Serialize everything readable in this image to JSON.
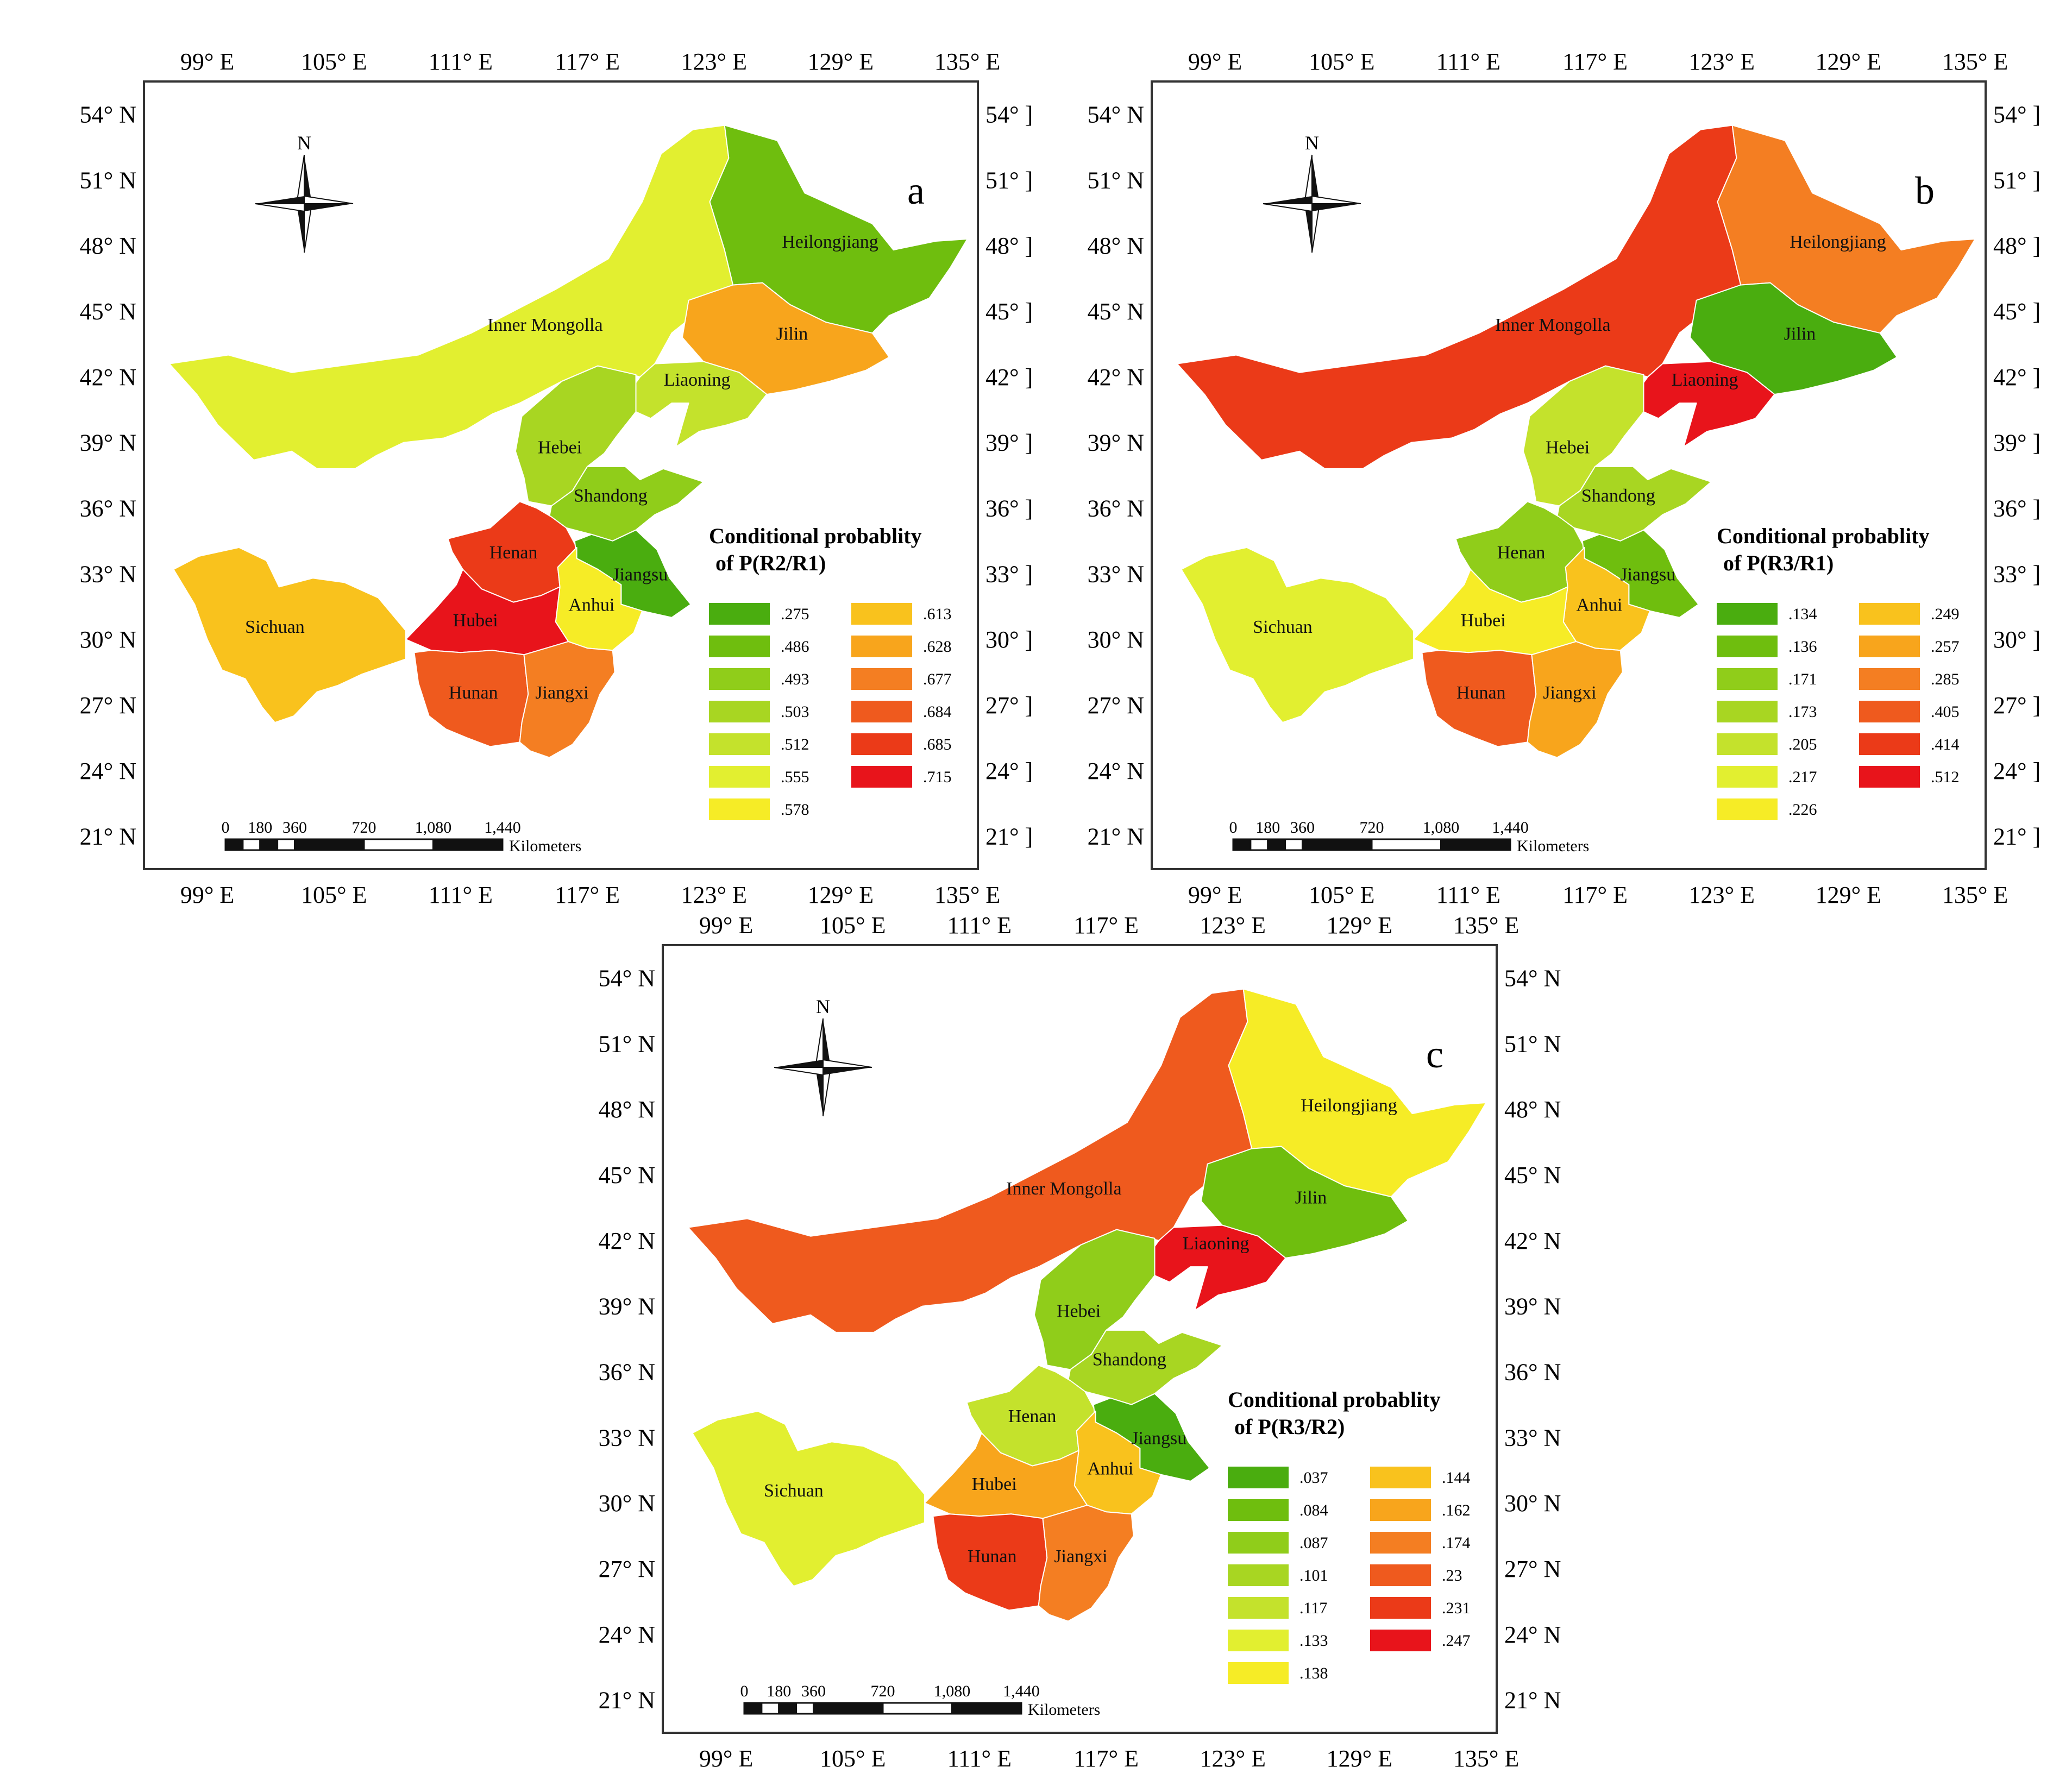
{
  "figure": {
    "panels": [
      {
        "id": "a",
        "panel_label": "a",
        "north_label": "N",
        "legend_title_line1": "Conditional probablity",
        "legend_title_line2": "of  P(R2/R1)",
        "scale_bar": {
          "ticks": [
            "0",
            "180",
            "360",
            "720",
            "1,080",
            "1,440"
          ],
          "unit": "Kilometers"
        },
        "axes": {
          "lon_labels_top": [
            "99° E",
            "105° E",
            "111° E",
            "117° E",
            "123° E",
            "129° E",
            "135° E"
          ],
          "lon_labels_bottom": [
            "99° E",
            "105° E",
            "111° E",
            "117° E",
            "123° E",
            "129° E",
            "135° E"
          ],
          "lat_labels_left": [
            "54° N",
            "51° N",
            "48° N",
            "45° N",
            "42° N",
            "39° N",
            "36° N",
            "33° N",
            "30° N",
            "27° N",
            "24° N",
            "21° N"
          ],
          "lat_labels_right": [
            "54° ]",
            "51° ]",
            "48° ]",
            "45° ]",
            "42° ]",
            "39° ]",
            "36° ]",
            "33° ]",
            "30° ]",
            "27° ]",
            "24° ]",
            "21° ]"
          ]
        },
        "legend_classes": [
          {
            "label": ".275",
            "color": "#4aad0f"
          },
          {
            "label": ".486",
            "color": "#6fbe0e"
          },
          {
            "label": ".493",
            "color": "#90cd1a"
          },
          {
            "label": ".503",
            "color": "#a8d622"
          },
          {
            "label": ".512",
            "color": "#c4e22c"
          },
          {
            "label": ".555",
            "color": "#e2ef30"
          },
          {
            "label": ".578",
            "color": "#f6ec26"
          },
          {
            "label": ".613",
            "color": "#f9c21d"
          },
          {
            "label": ".628",
            "color": "#f8a51c"
          },
          {
            "label": ".677",
            "color": "#f47e22"
          },
          {
            "label": ".684",
            "color": "#ef5a1e"
          },
          {
            "label": ".685",
            "color": "#eb3a18"
          },
          {
            "label": ".715",
            "color": "#e8141b"
          }
        ],
        "provinces": [
          {
            "name": "Inner Mongolla",
            "value": ".555",
            "color": "#e2ef30"
          },
          {
            "name": "Heilongjiang",
            "value": ".486",
            "color": "#6fbe0e"
          },
          {
            "name": "Jilin",
            "value": ".628",
            "color": "#f8a51c"
          },
          {
            "name": "Liaoning",
            "value": ".512",
            "color": "#c4e22c"
          },
          {
            "name": "Hebei",
            "value": ".503",
            "color": "#a8d622"
          },
          {
            "name": "Shandong",
            "value": ".493",
            "color": "#90cd1a"
          },
          {
            "name": "Henan",
            "value": ".685",
            "color": "#eb3a18"
          },
          {
            "name": "Jiangsu",
            "value": ".275",
            "color": "#4aad0f"
          },
          {
            "name": "Anhui",
            "value": ".578",
            "color": "#f6ec26"
          },
          {
            "name": "Hubei",
            "value": ".715",
            "color": "#e8141b"
          },
          {
            "name": "Sichuan",
            "value": ".613",
            "color": "#f9c21d"
          },
          {
            "name": "Hunan",
            "value": ".684",
            "color": "#ef5a1e"
          },
          {
            "name": "Jiangxi",
            "value": ".677",
            "color": "#f47e22"
          }
        ]
      },
      {
        "id": "b",
        "panel_label": "b",
        "north_label": "N",
        "legend_title_line1": "Conditional probablity",
        "legend_title_line2": "of  P(R3/R1)",
        "scale_bar": {
          "ticks": [
            "0",
            "180",
            "360",
            "720",
            "1,080",
            "1,440"
          ],
          "unit": "Kilometers"
        },
        "axes": {
          "lon_labels_top": [
            "99° E",
            "105° E",
            "111° E",
            "117° E",
            "123° E",
            "129° E",
            "135° E"
          ],
          "lon_labels_bottom": [
            "99° E",
            "105° E",
            "111° E",
            "117° E",
            "123° E",
            "129° E",
            "135° E"
          ],
          "lat_labels_left": [
            "54° N",
            "51° N",
            "48° N",
            "45° N",
            "42° N",
            "39° N",
            "36° N",
            "33° N",
            "30° N",
            "27° N",
            "24° N",
            "21° N"
          ],
          "lat_labels_right": [
            "54° ]",
            "51° ]",
            "48° ]",
            "45° ]",
            "42° ]",
            "39° ]",
            "36° ]",
            "33° ]",
            "30° ]",
            "27° ]",
            "24° ]",
            "21° ]"
          ]
        },
        "legend_classes": [
          {
            "label": ".134",
            "color": "#4aad0f"
          },
          {
            "label": ".136",
            "color": "#6fbe0e"
          },
          {
            "label": ".171",
            "color": "#90cd1a"
          },
          {
            "label": ".173",
            "color": "#a8d622"
          },
          {
            "label": ".205",
            "color": "#c4e22c"
          },
          {
            "label": ".217",
            "color": "#e2ef30"
          },
          {
            "label": ".226",
            "color": "#f6ec26"
          },
          {
            "label": ".249",
            "color": "#f9c21d"
          },
          {
            "label": ".257",
            "color": "#f8a51c"
          },
          {
            "label": ".285",
            "color": "#f47e22"
          },
          {
            "label": ".405",
            "color": "#ef5a1e"
          },
          {
            "label": ".414",
            "color": "#eb3a18"
          },
          {
            "label": ".512",
            "color": "#e8141b"
          }
        ],
        "provinces": [
          {
            "name": "Inner Mongolla",
            "value": ".414",
            "color": "#eb3a18"
          },
          {
            "name": "Heilongjiang",
            "value": ".285",
            "color": "#f47e22"
          },
          {
            "name": "Jilin",
            "value": ".134",
            "color": "#4aad0f"
          },
          {
            "name": "Liaoning",
            "value": ".512",
            "color": "#e8141b"
          },
          {
            "name": "Hebei",
            "value": ".205",
            "color": "#c4e22c"
          },
          {
            "name": "Shandong",
            "value": ".173",
            "color": "#a8d622"
          },
          {
            "name": "Henan",
            "value": ".171",
            "color": "#90cd1a"
          },
          {
            "name": "Jiangsu",
            "value": ".136",
            "color": "#6fbe0e"
          },
          {
            "name": "Anhui",
            "value": ".249",
            "color": "#f9c21d"
          },
          {
            "name": "Hubei",
            "value": ".226",
            "color": "#f6ec26"
          },
          {
            "name": "Sichuan",
            "value": ".217",
            "color": "#e2ef30"
          },
          {
            "name": "Hunan",
            "value": ".405",
            "color": "#ef5a1e"
          },
          {
            "name": "Jiangxi",
            "value": ".257",
            "color": "#f8a51c"
          }
        ]
      },
      {
        "id": "c",
        "panel_label": "c",
        "north_label": "N",
        "legend_title_line1": "Conditional probablity",
        "legend_title_line2": "of  P(R3/R2)",
        "scale_bar": {
          "ticks": [
            "0",
            "180",
            "360",
            "720",
            "1,080",
            "1,440"
          ],
          "unit": "Kilometers"
        },
        "axes": {
          "lon_labels_top": [
            "99° E",
            "105° E",
            "111° E",
            "117° E",
            "123° E",
            "129° E",
            "135° E"
          ],
          "lon_labels_bottom": [
            "99° E",
            "105° E",
            "111° E",
            "117° E",
            "123° E",
            "129° E",
            "135° E"
          ],
          "lat_labels_left": [
            "54° N",
            "51° N",
            "48° N",
            "45° N",
            "42° N",
            "39° N",
            "36° N",
            "33° N",
            "30° N",
            "27° N",
            "24° N",
            "21° N"
          ],
          "lat_labels_right": [
            "54° N",
            "51° N",
            "48° N",
            "45° N",
            "42° N",
            "39° N",
            "36° N",
            "33° N",
            "30° N",
            "27° N",
            "24° N",
            "21° N"
          ]
        },
        "legend_classes": [
          {
            "label": ".037",
            "color": "#4aad0f"
          },
          {
            "label": ".084",
            "color": "#6fbe0e"
          },
          {
            "label": ".087",
            "color": "#90cd1a"
          },
          {
            "label": ".101",
            "color": "#a8d622"
          },
          {
            "label": ".117",
            "color": "#c4e22c"
          },
          {
            "label": ".133",
            "color": "#e2ef30"
          },
          {
            "label": ".138",
            "color": "#f6ec26"
          },
          {
            "label": ".144",
            "color": "#f9c21d"
          },
          {
            "label": ".162",
            "color": "#f8a51c"
          },
          {
            "label": ".174",
            "color": "#f47e22"
          },
          {
            "label": ".23",
            "color": "#ef5a1e"
          },
          {
            "label": ".231",
            "color": "#eb3a18"
          },
          {
            "label": ".247",
            "color": "#e8141b"
          }
        ],
        "provinces": [
          {
            "name": "Inner Mongolla",
            "value": ".23",
            "color": "#ef5a1e"
          },
          {
            "name": "Heilongjiang",
            "value": ".138",
            "color": "#f6ec26"
          },
          {
            "name": "Jilin",
            "value": ".084",
            "color": "#6fbe0e"
          },
          {
            "name": "Liaoning",
            "value": ".247",
            "color": "#e8141b"
          },
          {
            "name": "Hebei",
            "value": ".087",
            "color": "#90cd1a"
          },
          {
            "name": "Shandong",
            "value": ".101",
            "color": "#a8d622"
          },
          {
            "name": "Henan",
            "value": ".117",
            "color": "#c4e22c"
          },
          {
            "name": "Jiangsu",
            "value": ".037",
            "color": "#4aad0f"
          },
          {
            "name": "Anhui",
            "value": ".144",
            "color": "#f9c21d"
          },
          {
            "name": "Hubei",
            "value": ".162",
            "color": "#f8a51c"
          },
          {
            "name": "Sichuan",
            "value": ".133",
            "color": "#e2ef30"
          },
          {
            "name": "Hunan",
            "value": ".231",
            "color": "#eb3a18"
          },
          {
            "name": "Jiangxi",
            "value": ".174",
            "color": "#f47e22"
          }
        ]
      }
    ]
  }
}
